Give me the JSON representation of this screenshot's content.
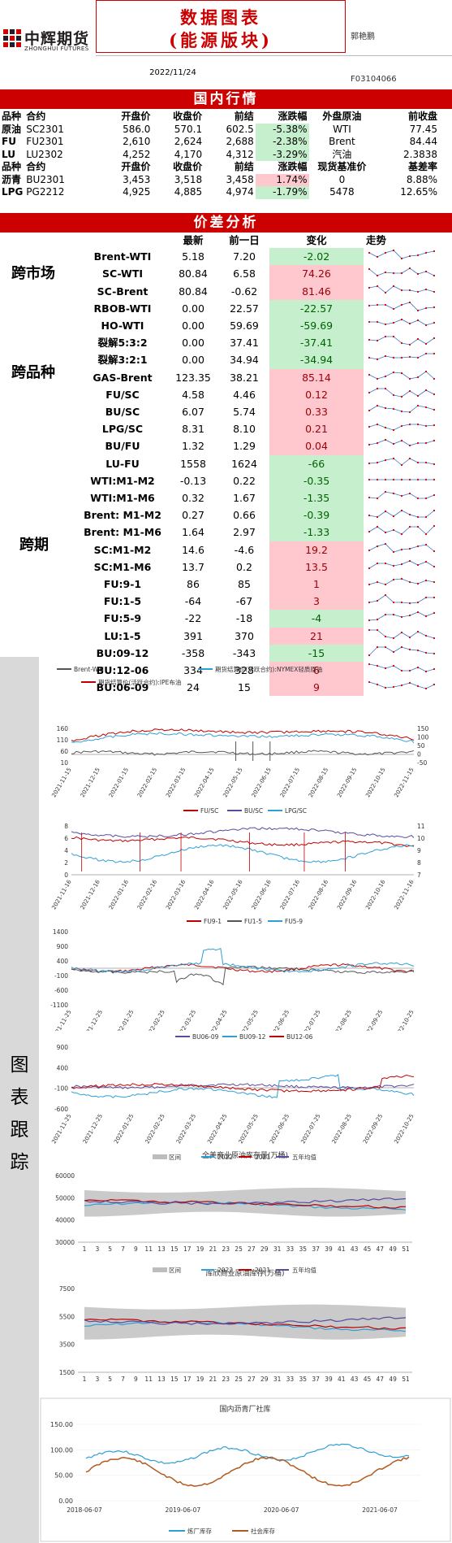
{
  "header": {
    "logo_cn": "中辉期货",
    "logo_en": "ZHONGHUI FUTURES",
    "title_line1": "数据图表",
    "title_line2": "(能源版块)",
    "author": "郭艳鹏",
    "date": "2022/11/24",
    "cert": "F03104066"
  },
  "sections": {
    "domestic": "国内行情",
    "spread": "价差分析"
  },
  "domestic": {
    "header1": [
      "品种",
      "合约",
      "开盘价",
      "收盘价",
      "前结",
      "涨跌幅",
      "外盘原油",
      "前收盘"
    ],
    "rows1": [
      {
        "kind": "原油",
        "contract": "SC2301",
        "open": "586.0",
        "close": "570.1",
        "settle": "602.5",
        "chg": "-5.38%",
        "ext": "WTI",
        "prev": "77.45"
      },
      {
        "kind": "FU",
        "contract": "FU2301",
        "open": "2,610",
        "close": "2,624",
        "settle": "2,688",
        "chg": "-2.38%",
        "ext": "Brent",
        "prev": "84.44"
      },
      {
        "kind": "LU",
        "contract": "LU2302",
        "open": "4,252",
        "close": "4,170",
        "settle": "4,312",
        "chg": "-3.29%",
        "ext": "汽油",
        "prev": "2.3838"
      }
    ],
    "header2": [
      "品种",
      "合约",
      "开盘价",
      "收盘价",
      "前结",
      "涨跌幅",
      "现货基准价",
      "基差率"
    ],
    "rows2": [
      {
        "kind": "沥青",
        "contract": "BU2301",
        "open": "3,453",
        "close": "3,518",
        "settle": "3,458",
        "chg": "1.74%",
        "ext": "0",
        "prev": "8.88%"
      },
      {
        "kind": "LPG",
        "contract": "PG2212",
        "open": "4,925",
        "close": "4,885",
        "settle": "4,974",
        "chg": "-1.79%",
        "ext": "5478",
        "prev": "12.65%"
      }
    ]
  },
  "spread": {
    "header": [
      "最新",
      "前一日",
      "变化",
      "走势"
    ],
    "groups": [
      "跨市场",
      "跨品种",
      "跨期"
    ],
    "rows": [
      {
        "name": "Brent-WTI",
        "latest": "5.18",
        "prev": "7.20",
        "chg": "-2.02",
        "dir": "down"
      },
      {
        "name": "SC-WTI",
        "latest": "80.84",
        "prev": "6.58",
        "chg": "74.26",
        "dir": "up"
      },
      {
        "name": "SC-Brent",
        "latest": "80.84",
        "prev": "-0.62",
        "chg": "81.46",
        "dir": "up"
      },
      {
        "name": "RBOB-WTI",
        "latest": "0.00",
        "prev": "22.57",
        "chg": "-22.57",
        "dir": "down"
      },
      {
        "name": "HO-WTI",
        "latest": "0.00",
        "prev": "59.69",
        "chg": "-59.69",
        "dir": "down"
      },
      {
        "name": "裂解5:3:2",
        "latest": "0.00",
        "prev": "37.41",
        "chg": "-37.41",
        "dir": "down"
      },
      {
        "name": "裂解3:2:1",
        "latest": "0.00",
        "prev": "34.94",
        "chg": "-34.94",
        "dir": "down"
      },
      {
        "name": "GAS-Brent",
        "latest": "123.35",
        "prev": "38.21",
        "chg": "85.14",
        "dir": "up"
      },
      {
        "name": "FU/SC",
        "latest": "4.58",
        "prev": "4.46",
        "chg": "0.12",
        "dir": "up"
      },
      {
        "name": "BU/SC",
        "latest": "6.07",
        "prev": "5.74",
        "chg": "0.33",
        "dir": "up"
      },
      {
        "name": "LPG/SC",
        "latest": "8.31",
        "prev": "8.10",
        "chg": "0.21",
        "dir": "up"
      },
      {
        "name": "BU/FU",
        "latest": "1.32",
        "prev": "1.29",
        "chg": "0.04",
        "dir": "up"
      },
      {
        "name": "LU-FU",
        "latest": "1558",
        "prev": "1624",
        "chg": "-66",
        "dir": "down"
      },
      {
        "name": "WTI:M1-M2",
        "latest": "-0.13",
        "prev": "0.22",
        "chg": "-0.35",
        "dir": "down"
      },
      {
        "name": "WTI:M1-M6",
        "latest": "0.32",
        "prev": "1.67",
        "chg": "-1.35",
        "dir": "down"
      },
      {
        "name": "Brent: M1-M2",
        "latest": "0.27",
        "prev": "0.66",
        "chg": "-0.39",
        "dir": "down"
      },
      {
        "name": "Brent: M1-M6",
        "latest": "1.64",
        "prev": "2.97",
        "chg": "-1.33",
        "dir": "down"
      },
      {
        "name": "SC:M1-M2",
        "latest": "14.6",
        "prev": "-4.6",
        "chg": "19.2",
        "dir": "up"
      },
      {
        "name": "SC:M1-M6",
        "latest": "13.7",
        "prev": "0.2",
        "chg": "13.5",
        "dir": "up"
      },
      {
        "name": "FU:9-1",
        "latest": "86",
        "prev": "85",
        "chg": "1",
        "dir": "up"
      },
      {
        "name": "FU:1-5",
        "latest": "-64",
        "prev": "-67",
        "chg": "3",
        "dir": "up"
      },
      {
        "name": "FU:5-9",
        "latest": "-22",
        "prev": "-18",
        "chg": "-4",
        "dir": "down"
      },
      {
        "name": "LU:1-5",
        "latest": "391",
        "prev": "370",
        "chg": "21",
        "dir": "up"
      },
      {
        "name": "BU:09-12",
        "latest": "-358",
        "prev": "-343",
        "chg": "-15",
        "dir": "down"
      },
      {
        "name": "BU:12-06",
        "latest": "334",
        "prev": "328",
        "chg": "6",
        "dir": "up"
      },
      {
        "name": "BU:06-09",
        "latest": "24",
        "prev": "15",
        "chg": "9",
        "dir": "up"
      }
    ]
  },
  "tracking_label": "图表跟踪",
  "colors": {
    "red": "#cc0000",
    "green_fill": "#c6efce",
    "pink_fill": "#ffc7ce",
    "blue": "#2e9fd6",
    "darkred": "#c00000",
    "purple": "#5b4a9e",
    "brown": "#b35a1f",
    "grey": "#bdbdbd"
  },
  "chart_data": [
    {
      "type": "line",
      "legend": [
        "Brent-WTI",
        "期货结算价(活跃合约):NYMEX轻质原油",
        "期货结算价(活跃合约):IPE布油"
      ],
      "x": [
        "2021-11-15",
        "2021-12-15",
        "2022-01-15",
        "2022-02-15",
        "2022-03-15",
        "2022-04-15",
        "2022-05-15",
        "2022-06-15",
        "2022-07-15",
        "2022-08-15",
        "2022-09-15",
        "2022-10-15",
        "2022-11-15"
      ],
      "yticks_left": [
        "160",
        "110",
        "60",
        "10"
      ],
      "yticks_right": [
        "150",
        "100",
        "50",
        "0",
        "-50"
      ],
      "series": [
        {
          "name": "期货结算价(活跃合约):NYMEX轻质原油",
          "values": [
            75,
            72,
            82,
            90,
            110,
            102,
            110,
            115,
            100,
            92,
            85,
            88,
            80
          ]
        },
        {
          "name": "期货结算价(活跃合约):IPE布油",
          "values": [
            79,
            75,
            85,
            95,
            115,
            106,
            113,
            120,
            105,
            98,
            90,
            94,
            85
          ]
        }
      ]
    },
    {
      "type": "line",
      "legend": [
        "FU/SC",
        "BU/SC",
        "LPG/SC"
      ],
      "x": [
        "2021-11-16",
        "2021-12-16",
        "2022-01-16",
        "2022-02-16",
        "2022-03-16",
        "2022-04-16",
        "2022-05-16",
        "2022-06-16",
        "2022-07-16",
        "2022-08-16",
        "2022-09-16",
        "2022-10-16",
        "2022-11-16"
      ],
      "yticks_left": [
        "8",
        "6",
        "4",
        "2",
        "0"
      ],
      "yticks_right": [
        "11",
        "10",
        "9",
        "8",
        "7"
      ],
      "series": [
        {
          "name": "FU/SC",
          "values": [
            5.4,
            5.2,
            5.0,
            5.0,
            5.2,
            5.0,
            4.8,
            4.6,
            4.4,
            4.3,
            4.4,
            4.5,
            4.6
          ]
        },
        {
          "name": "BU/SC",
          "values": [
            6.0,
            6.2,
            6.1,
            5.8,
            5.5,
            5.4,
            5.4,
            5.6,
            5.8,
            6.2,
            6.4,
            6.2,
            6.1
          ]
        },
        {
          "name": "LPG/SC",
          "values": [
            9.8,
            9.6,
            9.0,
            8.6,
            8.4,
            8.2,
            8.0,
            8.0,
            8.2,
            8.3,
            8.4,
            8.3,
            8.3
          ]
        }
      ]
    },
    {
      "type": "line",
      "legend": [
        "FU9-1",
        "FU1-5",
        "FU5-9"
      ],
      "x": [
        "2021-11-25",
        "2021-12-25",
        "2022-01-25",
        "2022-02-25",
        "2022-03-25",
        "2022-04-25",
        "2022-05-25",
        "2022-06-25",
        "2022-07-25",
        "2022-08-25",
        "2022-09-25",
        "2022-10-25"
      ],
      "yticks_left": [
        "1400",
        "900",
        "400",
        "-100",
        "-600",
        "-1100"
      ],
      "series": [
        {
          "name": "FU9-1",
          "values": [
            -100,
            -120,
            -90,
            -50,
            -200,
            100,
            -150,
            -100,
            -80,
            -60,
            -50,
            86
          ]
        },
        {
          "name": "FU1-5",
          "values": [
            50,
            20,
            100,
            250,
            -300,
            -350,
            -200,
            -100,
            -50,
            -20,
            -60,
            -64
          ]
        },
        {
          "name": "FU5-9",
          "values": [
            10,
            20,
            40,
            200,
            300,
            800,
            -200,
            -50,
            0,
            100,
            -20,
            -22
          ]
        }
      ]
    },
    {
      "type": "line",
      "legend": [
        "BU06-09",
        "BU09-12",
        "BU12-06"
      ],
      "x": [
        "2021-11-25",
        "2021-12-25",
        "2022-01-25",
        "2022-02-25",
        "2022-03-25",
        "2022-04-25",
        "2022-05-25",
        "2022-06-25",
        "2022-07-25",
        "2022-08-25",
        "2022-09-25",
        "2022-10-25"
      ],
      "yticks_left": [
        "900",
        "400",
        "-100",
        "-600"
      ],
      "series": [
        {
          "name": "BU06-09",
          "values": [
            0,
            -20,
            -50,
            -80,
            -150,
            -100,
            -60,
            -50,
            -20,
            -10,
            0,
            24
          ]
        },
        {
          "name": "BU09-12",
          "values": [
            -100,
            -150,
            -300,
            -200,
            -350,
            -150,
            -100,
            100,
            150,
            200,
            500,
            -358
          ]
        },
        {
          "name": "BU12-06",
          "values": [
            100,
            50,
            80,
            150,
            150,
            100,
            50,
            0,
            50,
            100,
            150,
            334
          ]
        }
      ]
    },
    {
      "type": "line",
      "title": "全美商业原油库存量(万桶)",
      "legend": [
        "区间",
        "2022",
        "2021",
        "五年均值"
      ],
      "x": [
        "1",
        "3",
        "5",
        "7",
        "9",
        "11",
        "13",
        "15",
        "17",
        "19",
        "21",
        "23",
        "25",
        "27",
        "29",
        "31",
        "33",
        "35",
        "37",
        "39",
        "41",
        "43",
        "45",
        "47",
        "49",
        "51"
      ],
      "yticks_left": [
        "60000",
        "50000",
        "40000",
        "30000"
      ]
    },
    {
      "type": "line",
      "title": "库欣商业原油库存(万桶)",
      "legend": [
        "区间",
        "2022",
        "2021",
        "五年均值"
      ],
      "x": [
        "1",
        "3",
        "5",
        "7",
        "9",
        "11",
        "13",
        "15",
        "17",
        "19",
        "21",
        "23",
        "25",
        "27",
        "29",
        "31",
        "33",
        "35",
        "37",
        "39",
        "41",
        "43",
        "45",
        "47",
        "49",
        "51"
      ],
      "yticks_left": [
        "7500",
        "5500",
        "3500",
        "1500"
      ]
    },
    {
      "type": "line",
      "title": "国内沥青厂社库",
      "legend": [
        "炼厂库存",
        "社会库存"
      ],
      "x": [
        "2018-06-07",
        "2019-06-07",
        "2020-06-07",
        "2021-06-07"
      ],
      "yticks_left": [
        "150.00",
        "100.00",
        "50.00",
        "0.00"
      ]
    }
  ]
}
